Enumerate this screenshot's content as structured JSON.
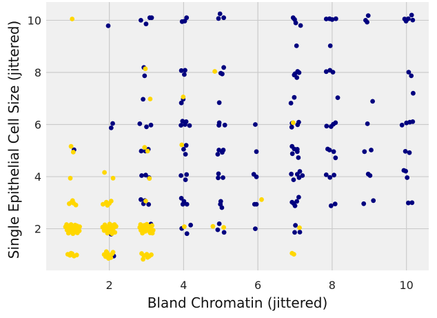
{
  "chart_data": {
    "type": "scatter",
    "title": "",
    "xlabel": "Bland Chromatin (jittered)",
    "ylabel": "Single Epithelial Cell Size (jittered)",
    "xlim": [
      0.3,
      10.6
    ],
    "ylim": [
      0.4,
      10.7
    ],
    "xticks": [
      2,
      4,
      6,
      8,
      10
    ],
    "yticks": [
      2,
      4,
      6,
      8,
      10
    ],
    "grid": true,
    "legend": "none",
    "colors": {
      "blue_group": "#00007f",
      "yellow_group": "#ffd700",
      "background": "#f0f0f0"
    },
    "series": [
      {
        "color": "#00007f",
        "points": [
          [
            1.05,
            5.03
          ],
          [
            1.97,
            9.79
          ],
          [
            2.05,
            5.87
          ],
          [
            2.09,
            6.04
          ],
          [
            2.12,
            0.95
          ],
          [
            2.05,
            1.79
          ],
          [
            2.85,
            10.0
          ],
          [
            2.99,
            9.86
          ],
          [
            3.09,
            10.1
          ],
          [
            3.14,
            10.1
          ],
          [
            2.93,
            8.19
          ],
          [
            2.95,
            7.87
          ],
          [
            2.91,
            6.97
          ],
          [
            2.82,
            6.03
          ],
          [
            3.0,
            5.91
          ],
          [
            3.12,
            5.98
          ],
          [
            2.86,
            4.98
          ],
          [
            2.97,
            4.98
          ],
          [
            3.05,
            5.05
          ],
          [
            2.87,
            4.04
          ],
          [
            2.98,
            4.06
          ],
          [
            3.07,
            3.96
          ],
          [
            2.85,
            3.12
          ],
          [
            2.96,
            3.08
          ],
          [
            3.06,
            2.93
          ],
          [
            2.92,
            2.96
          ],
          [
            3.12,
            2.18
          ],
          [
            3.96,
            9.95
          ],
          [
            4.03,
            9.97
          ],
          [
            4.08,
            10.1
          ],
          [
            3.94,
            8.07
          ],
          [
            4.04,
            8.08
          ],
          [
            4.02,
            7.92
          ],
          [
            3.99,
            6.97
          ],
          [
            3.94,
            6.83
          ],
          [
            3.97,
            6.13
          ],
          [
            4.07,
            6.11
          ],
          [
            3.93,
            5.97
          ],
          [
            4.04,
            6.0
          ],
          [
            4.16,
            5.96
          ],
          [
            4.0,
            5.05
          ],
          [
            4.07,
            5.2
          ],
          [
            4.05,
            4.86
          ],
          [
            3.93,
            4.04
          ],
          [
            4.08,
            4.08
          ],
          [
            4.05,
            3.88
          ],
          [
            3.94,
            3.17
          ],
          [
            4.01,
            3.05
          ],
          [
            4.09,
            2.94
          ],
          [
            3.98,
            2.94
          ],
          [
            4.19,
            2.14
          ],
          [
            4.09,
            1.81
          ],
          [
            3.95,
            2.01
          ],
          [
            4.98,
            10.25
          ],
          [
            4.94,
            10.07
          ],
          [
            5.08,
            10.1
          ],
          [
            5.08,
            8.19
          ],
          [
            5.0,
            7.97
          ],
          [
            5.04,
            7.94
          ],
          [
            4.96,
            6.84
          ],
          [
            4.96,
            6.07
          ],
          [
            4.95,
            5.97
          ],
          [
            5.11,
            5.98
          ],
          [
            4.95,
            5.02
          ],
          [
            4.92,
            4.86
          ],
          [
            5.04,
            4.93
          ],
          [
            5.07,
            5.02
          ],
          [
            4.94,
            4.11
          ],
          [
            4.93,
            3.95
          ],
          [
            5.06,
            3.96
          ],
          [
            5.0,
            3.05
          ],
          [
            4.99,
            2.94
          ],
          [
            5.03,
            2.81
          ],
          [
            4.96,
            2.19
          ],
          [
            4.92,
            1.96
          ],
          [
            5.09,
            1.86
          ],
          [
            5.93,
            6.0
          ],
          [
            5.96,
            4.96
          ],
          [
            5.89,
            4.09
          ],
          [
            5.96,
            3.99
          ],
          [
            5.91,
            2.94
          ],
          [
            5.96,
            2.94
          ],
          [
            5.93,
            2.0
          ],
          [
            6.95,
            10.1
          ],
          [
            6.99,
            10.03
          ],
          [
            7.02,
            9.9
          ],
          [
            7.15,
            9.8
          ],
          [
            7.04,
            9.02
          ],
          [
            7.0,
            7.95
          ],
          [
            7.07,
            8.04
          ],
          [
            7.11,
            7.99
          ],
          [
            6.98,
            7.9
          ],
          [
            7.05,
            7.8
          ],
          [
            6.98,
            7.04
          ],
          [
            6.89,
            6.82
          ],
          [
            6.92,
            6.05
          ],
          [
            7.1,
            6.09
          ],
          [
            6.91,
            5.9
          ],
          [
            7.07,
            5.99
          ],
          [
            6.92,
            5.16
          ],
          [
            6.98,
            5.06
          ],
          [
            7.06,
            5.05
          ],
          [
            6.93,
            4.88
          ],
          [
            7.06,
            4.96
          ],
          [
            7.09,
            4.73
          ],
          [
            7.13,
            4.2
          ],
          [
            6.9,
            4.1
          ],
          [
            6.96,
            3.88
          ],
          [
            7.06,
            4.09
          ],
          [
            7.11,
            3.96
          ],
          [
            7.2,
            4.04
          ],
          [
            6.92,
            3.02
          ],
          [
            7.0,
            2.88
          ],
          [
            7.05,
            3.05
          ],
          [
            7.1,
            3.21
          ],
          [
            6.96,
            2.97
          ],
          [
            7.01,
            2.13
          ],
          [
            6.99,
            1.86
          ],
          [
            7.13,
            1.87
          ],
          [
            7.84,
            10.05
          ],
          [
            7.93,
            10.06
          ],
          [
            8.0,
            10.03
          ],
          [
            8.1,
            10.06
          ],
          [
            7.84,
            8.03
          ],
          [
            7.94,
            8.08
          ],
          [
            8.02,
            8.01
          ],
          [
            7.95,
            9.02
          ],
          [
            8.15,
            7.03
          ],
          [
            7.85,
            5.94
          ],
          [
            7.97,
            5.92
          ],
          [
            8.03,
            6.01
          ],
          [
            8.09,
            6.07
          ],
          [
            7.88,
            5.06
          ],
          [
            7.93,
            5.02
          ],
          [
            8.04,
            4.96
          ],
          [
            8.09,
            4.72
          ],
          [
            7.84,
            4.07
          ],
          [
            7.94,
            3.97
          ],
          [
            8.05,
            4.06
          ],
          [
            7.97,
            2.88
          ],
          [
            8.08,
            2.95
          ],
          [
            8.9,
            10.0
          ],
          [
            8.97,
            10.18
          ],
          [
            8.94,
            9.93
          ],
          [
            8.95,
            6.03
          ],
          [
            9.09,
            6.89
          ],
          [
            8.87,
            4.96
          ],
          [
            9.05,
            5.02
          ],
          [
            8.97,
            4.1
          ],
          [
            9.02,
            4.04
          ],
          [
            8.85,
            2.96
          ],
          [
            9.11,
            3.08
          ],
          [
            9.95,
            10.05
          ],
          [
            9.99,
            9.97
          ],
          [
            10.05,
            10.06
          ],
          [
            10.14,
            10.2
          ],
          [
            10.17,
            10.01
          ],
          [
            10.06,
            8.01
          ],
          [
            10.13,
            7.87
          ],
          [
            10.18,
            7.2
          ],
          [
            9.88,
            5.98
          ],
          [
            10.0,
            6.06
          ],
          [
            10.09,
            6.09
          ],
          [
            10.17,
            6.11
          ],
          [
            9.97,
            4.97
          ],
          [
            10.08,
            4.92
          ],
          [
            9.93,
            4.24
          ],
          [
            9.98,
            4.21
          ],
          [
            10.02,
            3.96
          ],
          [
            10.05,
            2.99
          ],
          [
            10.15,
            3.0
          ]
        ]
      },
      {
        "color": "#ffd700",
        "points": [
          [
            1.0,
            10.05
          ],
          [
            0.97,
            5.16
          ],
          [
            1.03,
            4.94
          ],
          [
            0.95,
            3.94
          ],
          [
            0.92,
            2.96
          ],
          [
            0.98,
            3.01
          ],
          [
            1.04,
            2.98
          ],
          [
            1.1,
            2.91
          ],
          [
            1.01,
            3.08
          ],
          [
            0.82,
            2.07
          ],
          [
            0.86,
            1.95
          ],
          [
            0.88,
            2.09
          ],
          [
            0.91,
            2.01
          ],
          [
            0.94,
            2.12
          ],
          [
            0.96,
            1.89
          ],
          [
            0.99,
            2.05
          ],
          [
            1.01,
            1.97
          ],
          [
            1.03,
            2.1
          ],
          [
            1.05,
            1.93
          ],
          [
            1.07,
            2.04
          ],
          [
            1.09,
            1.87
          ],
          [
            1.11,
            2.0
          ],
          [
            1.13,
            2.11
          ],
          [
            1.15,
            1.96
          ],
          [
            1.17,
            2.06
          ],
          [
            1.19,
            1.92
          ],
          [
            0.9,
            1.83
          ],
          [
            0.97,
            2.16
          ],
          [
            1.08,
            2.14
          ],
          [
            1.14,
            1.84
          ],
          [
            0.85,
            2.16
          ],
          [
            1.2,
            2.08
          ],
          [
            1.02,
            1.81
          ],
          [
            0.88,
            1.02
          ],
          [
            0.94,
            0.98
          ],
          [
            1.0,
            1.04
          ],
          [
            1.05,
            0.95
          ],
          [
            1.12,
            0.99
          ],
          [
            0.97,
            1.06
          ],
          [
            1.87,
            4.16
          ],
          [
            2.1,
            3.94
          ],
          [
            1.83,
            2.94
          ],
          [
            1.92,
            3.02
          ],
          [
            2.0,
            2.97
          ],
          [
            2.05,
            3.06
          ],
          [
            1.95,
            2.9
          ],
          [
            1.82,
            2.06
          ],
          [
            1.86,
            1.93
          ],
          [
            1.9,
            2.1
          ],
          [
            1.93,
            2.01
          ],
          [
            1.97,
            1.89
          ],
          [
            2.0,
            2.07
          ],
          [
            2.03,
            1.98
          ],
          [
            2.06,
            2.13
          ],
          [
            2.09,
            1.95
          ],
          [
            2.12,
            2.04
          ],
          [
            2.15,
            1.86
          ],
          [
            2.18,
            2.09
          ],
          [
            1.88,
            2.15
          ],
          [
            1.95,
            1.83
          ],
          [
            2.07,
            1.81
          ],
          [
            2.14,
            2.16
          ],
          [
            2.01,
            2.18
          ],
          [
            1.86,
            1.01
          ],
          [
            1.9,
            0.93
          ],
          [
            1.95,
            1.06
          ],
          [
            2.0,
            0.98
          ],
          [
            2.04,
            0.89
          ],
          [
            2.08,
            1.04
          ],
          [
            1.92,
            1.12
          ],
          [
            2.1,
            1.1
          ],
          [
            1.98,
            0.86
          ],
          [
            2.97,
            8.14
          ],
          [
            3.1,
            6.98
          ],
          [
            2.95,
            5.12
          ],
          [
            3.03,
            4.98
          ],
          [
            3.08,
            3.93
          ],
          [
            2.98,
            3.06
          ],
          [
            2.82,
            2.05
          ],
          [
            2.85,
            1.94
          ],
          [
            2.88,
            2.09
          ],
          [
            2.91,
            2.0
          ],
          [
            2.94,
            2.13
          ],
          [
            2.97,
            1.9
          ],
          [
            3.0,
            2.06
          ],
          [
            3.03,
            1.96
          ],
          [
            3.06,
            2.1
          ],
          [
            3.09,
            1.88
          ],
          [
            3.12,
            2.02
          ],
          [
            3.15,
            2.12
          ],
          [
            3.18,
            1.94
          ],
          [
            2.89,
            1.83
          ],
          [
            3.01,
            2.17
          ],
          [
            3.1,
            1.84
          ],
          [
            2.84,
            2.16
          ],
          [
            3.16,
            1.83
          ],
          [
            2.87,
            1.05
          ],
          [
            2.93,
            0.97
          ],
          [
            3.01,
            1.02
          ],
          [
            3.07,
            0.94
          ],
          [
            3.13,
            1.0
          ],
          [
            2.91,
            0.83
          ],
          [
            3.03,
            0.9
          ],
          [
            3.99,
            7.06
          ],
          [
            3.95,
            5.22
          ],
          [
            4.02,
            2.08
          ],
          [
            4.84,
            8.04
          ],
          [
            4.79,
            2.09
          ],
          [
            5.08,
            2.05
          ],
          [
            6.1,
            3.12
          ],
          [
            6.95,
            6.07
          ],
          [
            6.92,
            1.06
          ],
          [
            6.97,
            1.02
          ],
          [
            7.12,
            2.04
          ]
        ]
      }
    ]
  }
}
